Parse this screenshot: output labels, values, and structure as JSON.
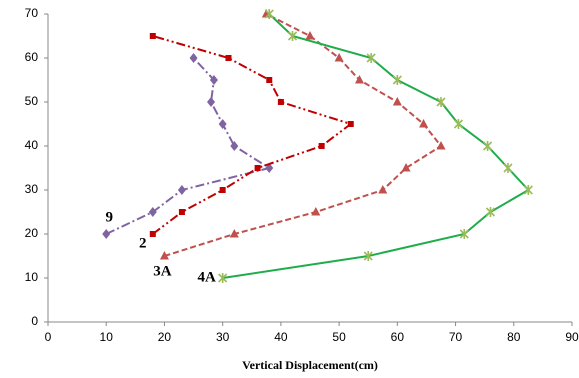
{
  "chart_data": {
    "type": "line",
    "x_label": "Vertical Displacement(cm)",
    "xlim": [
      0,
      90
    ],
    "xticks": [
      0,
      10,
      20,
      30,
      40,
      50,
      60,
      70,
      80,
      90
    ],
    "ylim": [
      0,
      70
    ],
    "yticks": [
      0,
      10,
      20,
      30,
      40,
      50,
      60,
      70
    ],
    "grid": false,
    "series": [
      {
        "name": "9",
        "color": "#8064a2",
        "marker": "diamond",
        "dash": "dashdot",
        "x": [
          10,
          18,
          23,
          38,
          32,
          30,
          28,
          28.5,
          25
        ],
        "values": [
          20,
          25,
          30,
          35,
          40,
          45,
          50,
          55,
          60
        ]
      },
      {
        "name": "2",
        "color": "#c00000",
        "marker": "square",
        "dash": "dashdotdot",
        "x": [
          18,
          23,
          30,
          36,
          47,
          52,
          40,
          38,
          31,
          18
        ],
        "values": [
          20,
          25,
          30,
          35,
          40,
          45,
          50,
          55,
          60,
          65
        ]
      },
      {
        "name": "3A",
        "color": "#c0504d",
        "marker": "triangle",
        "dash": "dashed",
        "x": [
          20,
          32,
          46,
          57.5,
          61.5,
          67.5,
          64.5,
          60,
          53.5,
          50,
          45,
          37.5
        ],
        "values": [
          15,
          20,
          25,
          30,
          35,
          40,
          45,
          50,
          55,
          60,
          65,
          70
        ]
      },
      {
        "name": "4A",
        "color": "#1fad4b",
        "marker": "star",
        "dash": "solid",
        "x": [
          30,
          55,
          71.5,
          76,
          82.5,
          79,
          75.5,
          70.5,
          67.5,
          60,
          55.5,
          42,
          38
        ],
        "values": [
          10,
          15,
          20,
          25,
          30,
          35,
          40,
          45,
          50,
          55,
          60,
          65,
          70
        ]
      }
    ]
  }
}
